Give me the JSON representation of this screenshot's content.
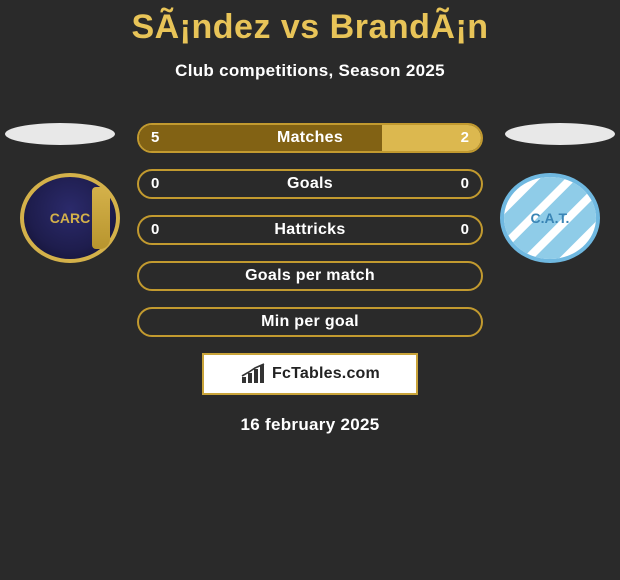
{
  "title": "SÃ¡ndez vs BrandÃ¡n",
  "title_color": "#e8c458",
  "subtitle": "Club competitions, Season 2025",
  "date": "16 february 2025",
  "background_color": "#2a2a2a",
  "player_left": {
    "club_abbr": "CARC"
  },
  "player_right": {
    "club_abbr": "C.A.T."
  },
  "bars": {
    "defaults": {
      "border_color": "#c29a2f",
      "fill_left_color": "#826214",
      "fill_right_color": "#dcb84f",
      "empty_color": "#2a2a2a",
      "label_color": "#ffffff",
      "label_fontsize": 16,
      "value_fontsize": 15,
      "height": 30,
      "radius": 15,
      "gap": 16
    },
    "rows": [
      {
        "label": "Matches",
        "left_value": "5",
        "right_value": "2",
        "left_pct": 71,
        "right_pct": 29,
        "show_values": true,
        "filled": true
      },
      {
        "label": "Goals",
        "left_value": "0",
        "right_value": "0",
        "left_pct": 0,
        "right_pct": 0,
        "show_values": true,
        "filled": false
      },
      {
        "label": "Hattricks",
        "left_value": "0",
        "right_value": "0",
        "left_pct": 0,
        "right_pct": 0,
        "show_values": true,
        "filled": false
      },
      {
        "label": "Goals per match",
        "left_value": "",
        "right_value": "",
        "left_pct": 0,
        "right_pct": 0,
        "show_values": false,
        "filled": false
      },
      {
        "label": "Min per goal",
        "left_value": "",
        "right_value": "",
        "left_pct": 0,
        "right_pct": 0,
        "show_values": false,
        "filled": false
      }
    ]
  },
  "brand": {
    "text": "FcTables.com",
    "border_color": "#c9a43a",
    "background_color": "#ffffff",
    "text_color": "#222222",
    "icon_color": "#333333"
  }
}
